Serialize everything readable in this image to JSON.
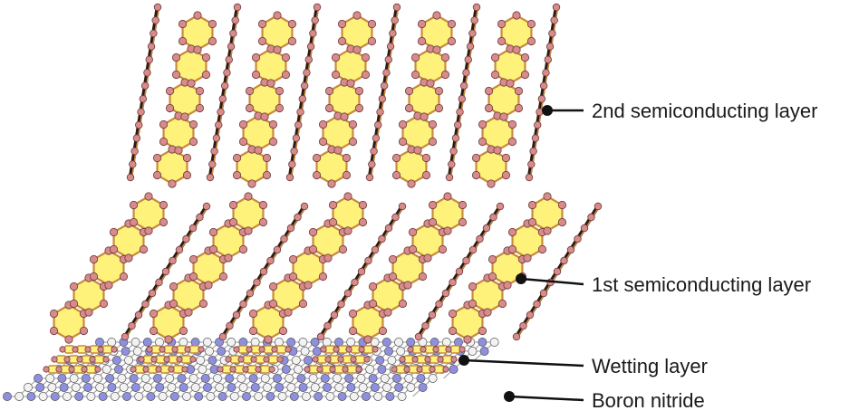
{
  "labels": {
    "second_layer": "2nd semiconducting layer",
    "first_layer": "1st semiconducting layer",
    "wetting_layer": "Wetting layer",
    "boron_nitride": "Boron nitride"
  },
  "colors": {
    "ring_fill": "#fff27a",
    "ring_edge": "#c98a3e",
    "carbon_atom": "#d98b8b",
    "carbon_atom_edge": "#6b3b3b",
    "boron_atom": "#8f8fe0",
    "nitrogen_atom": "#f2f2f2",
    "bond_dark": "#2b1b14",
    "callout_line": "#111111"
  }
}
